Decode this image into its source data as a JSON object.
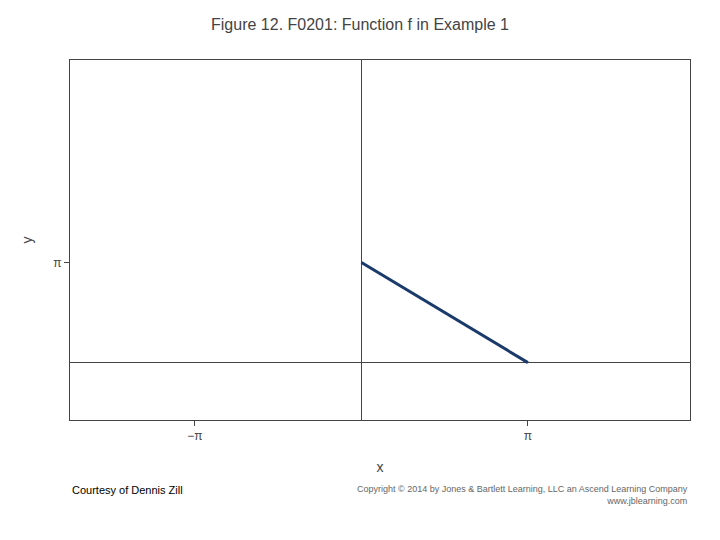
{
  "chart_data": {
    "type": "line",
    "title": "Figure 12. F0201: Function f in Example 1",
    "xlabel": "x",
    "ylabel": "y",
    "x": [
      0,
      3.14159265
    ],
    "values": [
      3.14159265,
      0
    ],
    "color": "#1a3a6b",
    "xlim": [
      -5.5,
      6.2
    ],
    "ylim": [
      -1.8,
      9.5
    ],
    "xticks": [
      {
        "value": -3.14159265358979,
        "label": "−π"
      },
      {
        "value": 3.14159265358979,
        "label": "π"
      }
    ],
    "yticks": [
      {
        "value": 3.14159265358979,
        "label": "π"
      }
    ],
    "grid": false,
    "annotations": [
      "Courtesy of Dennis Zill",
      "Copyright © 2014 by Jones & Bartlett Learning, LLC an Ascend Learning Company\nwww.jblearning.com"
    ]
  }
}
